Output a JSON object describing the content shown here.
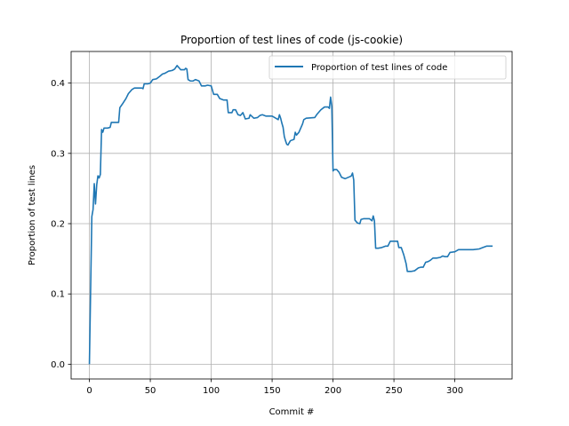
{
  "chart_data": {
    "type": "line",
    "title": "Proportion of test lines of code (js-cookie)",
    "xlabel": "Commit #",
    "ylabel": "Proportion of test lines",
    "xlim": [
      -15,
      347
    ],
    "ylim": [
      -0.021,
      0.445
    ],
    "x_ticks": [
      0,
      50,
      100,
      150,
      200,
      250,
      300
    ],
    "y_ticks": [
      0.0,
      0.1,
      0.2,
      0.3,
      0.4
    ],
    "y_tick_labels": [
      "0.0",
      "0.1",
      "0.2",
      "0.3",
      "0.4"
    ],
    "grid": true,
    "legend_position": "top-right",
    "series": [
      {
        "name": "Proportion of test lines of code",
        "color": "#1f77b4",
        "points": [
          [
            0,
            0.0
          ],
          [
            2,
            0.21
          ],
          [
            3,
            0.22
          ],
          [
            4,
            0.257
          ],
          [
            5,
            0.228
          ],
          [
            6,
            0.255
          ],
          [
            7,
            0.268
          ],
          [
            8,
            0.265
          ],
          [
            9,
            0.27
          ],
          [
            10,
            0.334
          ],
          [
            11,
            0.33
          ],
          [
            12,
            0.336
          ],
          [
            15,
            0.336
          ],
          [
            17,
            0.337
          ],
          [
            18,
            0.344
          ],
          [
            24,
            0.344
          ],
          [
            25,
            0.365
          ],
          [
            27,
            0.37
          ],
          [
            30,
            0.378
          ],
          [
            32,
            0.385
          ],
          [
            35,
            0.391
          ],
          [
            37,
            0.393
          ],
          [
            43,
            0.393
          ],
          [
            44,
            0.392
          ],
          [
            45,
            0.399
          ],
          [
            48,
            0.399
          ],
          [
            50,
            0.4
          ],
          [
            52,
            0.405
          ],
          [
            55,
            0.406
          ],
          [
            58,
            0.41
          ],
          [
            60,
            0.413
          ],
          [
            62,
            0.414
          ],
          [
            65,
            0.417
          ],
          [
            68,
            0.418
          ],
          [
            70,
            0.42
          ],
          [
            72,
            0.425
          ],
          [
            74,
            0.421
          ],
          [
            75,
            0.419
          ],
          [
            78,
            0.419
          ],
          [
            79,
            0.421
          ],
          [
            80,
            0.42
          ],
          [
            81,
            0.405
          ],
          [
            83,
            0.403
          ],
          [
            85,
            0.403
          ],
          [
            87,
            0.405
          ],
          [
            90,
            0.403
          ],
          [
            92,
            0.396
          ],
          [
            95,
            0.396
          ],
          [
            97,
            0.397
          ],
          [
            100,
            0.396
          ],
          [
            102,
            0.384
          ],
          [
            105,
            0.384
          ],
          [
            107,
            0.378
          ],
          [
            110,
            0.376
          ],
          [
            113,
            0.376
          ],
          [
            114,
            0.358
          ],
          [
            117,
            0.358
          ],
          [
            118,
            0.362
          ],
          [
            120,
            0.362
          ],
          [
            122,
            0.355
          ],
          [
            124,
            0.354
          ],
          [
            126,
            0.358
          ],
          [
            128,
            0.349
          ],
          [
            131,
            0.35
          ],
          [
            132,
            0.355
          ],
          [
            135,
            0.35
          ],
          [
            138,
            0.351
          ],
          [
            140,
            0.354
          ],
          [
            142,
            0.355
          ],
          [
            145,
            0.353
          ],
          [
            150,
            0.353
          ],
          [
            153,
            0.35
          ],
          [
            155,
            0.348
          ],
          [
            156,
            0.355
          ],
          [
            157,
            0.35
          ],
          [
            158,
            0.343
          ],
          [
            159,
            0.337
          ],
          [
            160,
            0.324
          ],
          [
            161,
            0.318
          ],
          [
            162,
            0.313
          ],
          [
            163,
            0.312
          ],
          [
            165,
            0.318
          ],
          [
            168,
            0.32
          ],
          [
            169,
            0.33
          ],
          [
            170,
            0.326
          ],
          [
            172,
            0.33
          ],
          [
            175,
            0.342
          ],
          [
            176,
            0.348
          ],
          [
            178,
            0.35
          ],
          [
            185,
            0.351
          ],
          [
            187,
            0.356
          ],
          [
            190,
            0.362
          ],
          [
            193,
            0.366
          ],
          [
            196,
            0.366
          ],
          [
            197,
            0.364
          ],
          [
            198,
            0.38
          ],
          [
            199,
            0.367
          ],
          [
            200,
            0.275
          ],
          [
            201,
            0.277
          ],
          [
            203,
            0.277
          ],
          [
            205,
            0.273
          ],
          [
            207,
            0.266
          ],
          [
            210,
            0.264
          ],
          [
            214,
            0.267
          ],
          [
            215,
            0.268
          ],
          [
            216,
            0.272
          ],
          [
            217,
            0.262
          ],
          [
            218,
            0.205
          ],
          [
            220,
            0.201
          ],
          [
            222,
            0.2
          ],
          [
            223,
            0.206
          ],
          [
            225,
            0.207
          ],
          [
            230,
            0.207
          ],
          [
            232,
            0.204
          ],
          [
            233,
            0.211
          ],
          [
            234,
            0.204
          ],
          [
            235,
            0.165
          ],
          [
            237,
            0.165
          ],
          [
            240,
            0.166
          ],
          [
            243,
            0.168
          ],
          [
            245,
            0.168
          ],
          [
            247,
            0.175
          ],
          [
            253,
            0.175
          ],
          [
            254,
            0.166
          ],
          [
            256,
            0.166
          ],
          [
            258,
            0.156
          ],
          [
            260,
            0.143
          ],
          [
            261,
            0.132
          ],
          [
            264,
            0.132
          ],
          [
            267,
            0.133
          ],
          [
            270,
            0.137
          ],
          [
            272,
            0.138
          ],
          [
            274,
            0.138
          ],
          [
            276,
            0.145
          ],
          [
            278,
            0.146
          ],
          [
            280,
            0.148
          ],
          [
            282,
            0.151
          ],
          [
            285,
            0.151
          ],
          [
            288,
            0.152
          ],
          [
            290,
            0.154
          ],
          [
            292,
            0.153
          ],
          [
            294,
            0.153
          ],
          [
            296,
            0.159
          ],
          [
            300,
            0.16
          ],
          [
            303,
            0.163
          ],
          [
            315,
            0.163
          ],
          [
            320,
            0.164
          ],
          [
            323,
            0.166
          ],
          [
            326,
            0.168
          ],
          [
            331,
            0.168
          ]
        ]
      }
    ]
  }
}
